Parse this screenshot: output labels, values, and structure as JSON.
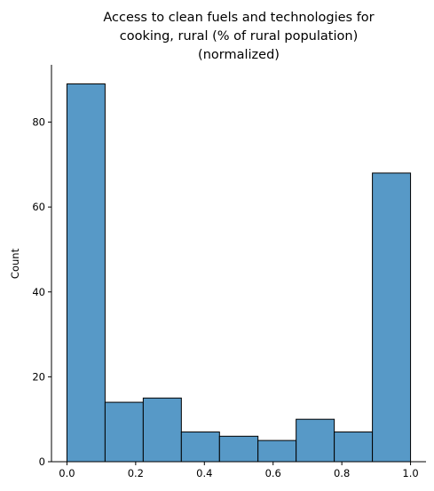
{
  "chart_data": {
    "type": "bar",
    "subtype": "histogram",
    "title_lines": [
      "Access to clean fuels and technologies for",
      "cooking, rural (% of rural population)",
      "(normalized)"
    ],
    "xlabel": "",
    "ylabel": "Count",
    "xlim": [
      -0.045,
      1.045
    ],
    "ylim": [
      0,
      93.5
    ],
    "x_ticks": [
      0.0,
      0.2,
      0.4,
      0.6,
      0.8,
      1.0
    ],
    "x_tick_labels": [
      "0.0",
      "0.2",
      "0.4",
      "0.6",
      "0.8",
      "1.0"
    ],
    "y_ticks": [
      0,
      20,
      40,
      60,
      80
    ],
    "y_tick_labels": [
      "0",
      "20",
      "40",
      "60",
      "80"
    ],
    "bin_edges": [
      0.0,
      0.111,
      0.222,
      0.333,
      0.444,
      0.556,
      0.667,
      0.778,
      0.889,
      1.0
    ],
    "values": [
      89,
      14,
      15,
      7,
      6,
      5,
      10,
      7,
      68
    ],
    "bar_color": "#5799c7",
    "edge_color": "#000000",
    "grid": false,
    "spines": [
      "left",
      "bottom"
    ]
  }
}
